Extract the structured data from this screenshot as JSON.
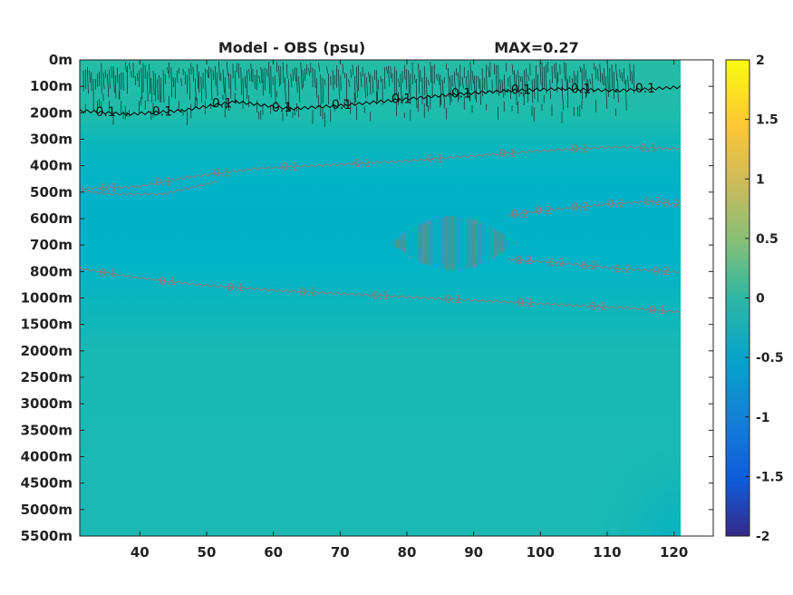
{
  "chart_data": {
    "type": "heatmap",
    "title_left": "Model - OBS (psu)",
    "title_right": "MAX=0.27",
    "y_ticks": [
      "0m",
      "100m",
      "200m",
      "300m",
      "400m",
      "500m",
      "600m",
      "700m",
      "800m",
      "1000m",
      "1500m",
      "2000m",
      "2500m",
      "3000m",
      "3500m",
      "4000m",
      "4500m",
      "5000m",
      "5500m"
    ],
    "x_ticks": [
      "40",
      "50",
      "60",
      "70",
      "80",
      "90",
      "100",
      "110",
      "120"
    ],
    "x_values": [
      40,
      50,
      60,
      70,
      80,
      90,
      100,
      110,
      120
    ],
    "xlim": [
      31,
      121
    ],
    "colorbar": {
      "ticks": [
        "2",
        "1.5",
        "1",
        "0.5",
        "0",
        "-0.5",
        "-1",
        "-1.5",
        "-2"
      ],
      "values": [
        2,
        1.5,
        1,
        0.5,
        0,
        -0.5,
        -1,
        -1.5,
        -2
      ],
      "range": [
        -2,
        2
      ],
      "colormap": "parula"
    },
    "contours": [
      {
        "level": "0.1",
        "color": "#000000",
        "depth_band": "0m-200m",
        "labels": [
          "0.1",
          "0.1",
          "0.1",
          "0.1",
          "0.1",
          "0.1",
          "0.1",
          "0.1",
          "0.1",
          "0.1"
        ]
      },
      {
        "level": "0.1",
        "color": "#8a7a7a",
        "depth_band": "300m-500m",
        "labels": [
          "0.1",
          "0.1",
          "0.1",
          "0.1",
          "0.1",
          "0.1",
          "0.1",
          "0.1",
          "0.1"
        ]
      },
      {
        "level": "0.2",
        "color": "#8a7a7a",
        "depth_band": "500m-600m",
        "labels": [
          "0.2",
          "0.2",
          "0.2",
          "0.2",
          "0.2",
          "0.2"
        ]
      },
      {
        "level": "0.2",
        "color": "#8a7a7a",
        "depth_band": "600m-800m",
        "labels": [
          "0.2",
          "0.2",
          "0.2",
          "0.2",
          "0.2"
        ]
      },
      {
        "level": "0.1",
        "color": "#8a7a7a",
        "depth_band": "800m-1500m",
        "labels": [
          "0.1",
          "0.1",
          "0.1",
          "0.1",
          "0.1",
          "0.1",
          "0.1",
          "0.1",
          "0.1"
        ]
      }
    ],
    "field_colors": {
      "surface": "#22bba8",
      "mid": "#00b3c8",
      "deep": "#1cb9b4",
      "bottom_corner": "#08b3c0"
    }
  }
}
